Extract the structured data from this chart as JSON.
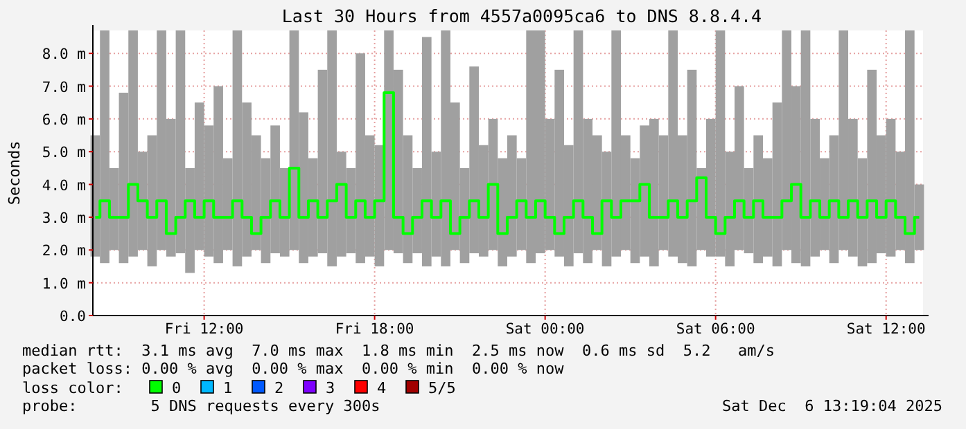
{
  "chart_data": {
    "type": "bar",
    "title": "Last 30 Hours from 4557a0095ca6 to DNS 8.8.4.4",
    "ylabel": "Seconds",
    "legend_title": "loss color:",
    "legend": "bottom",
    "grid": true,
    "x": [
      "2025-12-05T08:10",
      "2025-12-05T08:30",
      "2025-12-05T08:50",
      "2025-12-05T09:10",
      "2025-12-05T09:30",
      "2025-12-05T09:50",
      "2025-12-05T10:10",
      "2025-12-05T10:30",
      "2025-12-05T10:50",
      "2025-12-05T11:10",
      "2025-12-05T11:30",
      "2025-12-05T11:50",
      "2025-12-05T12:10",
      "2025-12-05T12:30",
      "2025-12-05T12:50",
      "2025-12-05T13:10",
      "2025-12-05T13:30",
      "2025-12-05T13:50",
      "2025-12-05T14:10",
      "2025-12-05T14:30",
      "2025-12-05T14:50",
      "2025-12-05T15:10",
      "2025-12-05T15:30",
      "2025-12-05T15:50",
      "2025-12-05T16:10",
      "2025-12-05T16:30",
      "2025-12-05T16:50",
      "2025-12-05T17:10",
      "2025-12-05T17:30",
      "2025-12-05T17:50",
      "2025-12-05T18:10",
      "2025-12-05T18:30",
      "2025-12-05T18:50",
      "2025-12-05T19:10",
      "2025-12-05T19:30",
      "2025-12-05T19:50",
      "2025-12-05T20:10",
      "2025-12-05T20:30",
      "2025-12-05T20:50",
      "2025-12-05T21:10",
      "2025-12-05T21:30",
      "2025-12-05T21:50",
      "2025-12-05T22:10",
      "2025-12-05T22:30",
      "2025-12-05T22:50",
      "2025-12-05T23:10",
      "2025-12-05T23:30",
      "2025-12-05T23:50",
      "2025-12-06T00:10",
      "2025-12-06T00:30",
      "2025-12-06T00:50",
      "2025-12-06T01:10",
      "2025-12-06T01:30",
      "2025-12-06T01:50",
      "2025-12-06T02:10",
      "2025-12-06T02:30",
      "2025-12-06T02:50",
      "2025-12-06T03:10",
      "2025-12-06T03:30",
      "2025-12-06T03:50",
      "2025-12-06T04:10",
      "2025-12-06T04:30",
      "2025-12-06T04:50",
      "2025-12-06T05:10",
      "2025-12-06T05:30",
      "2025-12-06T05:50",
      "2025-12-06T06:10",
      "2025-12-06T06:30",
      "2025-12-06T06:50",
      "2025-12-06T07:10",
      "2025-12-06T07:30",
      "2025-12-06T07:50",
      "2025-12-06T08:10",
      "2025-12-06T08:30",
      "2025-12-06T08:50",
      "2025-12-06T09:10",
      "2025-12-06T09:30",
      "2025-12-06T09:50",
      "2025-12-06T10:10",
      "2025-12-06T10:30",
      "2025-12-06T10:50",
      "2025-12-06T11:10",
      "2025-12-06T11:30",
      "2025-12-06T11:50",
      "2025-12-06T12:10",
      "2025-12-06T12:30",
      "2025-12-06T12:50",
      "2025-12-06T13:10"
    ],
    "series": [
      {
        "base": [
          1.8,
          1.6,
          2.0,
          1.6,
          1.8,
          2.0,
          1.5,
          2.0,
          1.8,
          1.9,
          1.3,
          2.0,
          1.8,
          1.6,
          2.0,
          1.5,
          1.8,
          2.0,
          1.6,
          1.9,
          1.8,
          2.0,
          1.6,
          1.8,
          1.9,
          1.5,
          1.8,
          1.9,
          1.6,
          1.8,
          1.5,
          2.0,
          1.9,
          1.6,
          1.9,
          1.5,
          1.8,
          1.5,
          2.0,
          1.6,
          1.9,
          1.8,
          2.0,
          1.5,
          1.8,
          2.0,
          1.6,
          1.9,
          2.0,
          1.8,
          1.5,
          1.9,
          1.6,
          2.0,
          1.5,
          1.8,
          2.0,
          1.6,
          1.8,
          1.5,
          2.0,
          1.8,
          1.6,
          1.5,
          2.0,
          1.8,
          1.8,
          1.5,
          2.0,
          1.9,
          1.6,
          1.8,
          1.5,
          2.0,
          1.6,
          1.5,
          1.8,
          2.0,
          1.6,
          2.0,
          1.8,
          1.5,
          1.6,
          1.9,
          1.8,
          2.0,
          1.6,
          2.0
        ],
        "color": "#a0a0a0",
        "values": [
          3.7,
          7.1,
          2.5,
          5.2,
          6.9,
          3.0,
          4.0,
          6.7,
          4.2,
          6.8,
          3.2,
          4.5,
          4.0,
          5.4,
          2.8,
          7.2,
          4.7,
          3.5,
          3.2,
          3.9,
          2.7,
          6.7,
          4.6,
          3.0,
          5.6,
          7.2,
          3.2,
          2.6,
          6.4,
          3.7,
          3.7,
          6.7,
          5.6,
          3.9,
          2.6,
          7.0,
          3.2,
          7.2,
          4.5,
          2.9,
          5.7,
          3.4,
          4.0,
          3.3,
          3.7,
          2.8,
          7.1,
          6.8,
          4.0,
          5.7,
          3.7,
          6.8,
          4.4,
          3.5,
          3.5,
          6.9,
          3.5,
          3.2,
          4.0,
          4.5,
          3.5,
          6.9,
          3.9,
          6.0,
          2.5,
          4.2,
          6.9,
          3.5,
          5.0,
          2.6,
          3.9,
          3.0,
          5.0,
          6.7,
          5.4,
          7.2,
          4.2,
          2.8,
          3.9,
          6.7,
          4.2,
          3.3,
          5.9,
          3.6,
          4.2,
          3.0,
          7.1,
          2.0
        ]
      },
      {
        "type": "step",
        "name": "0",
        "color": "#00ff00",
        "values": [
          3.0,
          3.5,
          3.0,
          3.0,
          4.0,
          3.5,
          3.0,
          3.5,
          2.5,
          3.0,
          3.5,
          3.0,
          3.5,
          3.0,
          3.0,
          3.5,
          3.0,
          2.5,
          3.0,
          3.5,
          3.0,
          4.5,
          3.0,
          3.5,
          3.0,
          3.5,
          4.0,
          3.0,
          3.5,
          3.0,
          3.5,
          6.8,
          3.0,
          2.5,
          3.0,
          3.5,
          3.0,
          3.5,
          2.5,
          3.0,
          3.5,
          3.0,
          4.0,
          2.5,
          3.0,
          3.5,
          3.0,
          3.5,
          3.0,
          2.5,
          3.0,
          3.5,
          3.0,
          2.5,
          3.5,
          3.0,
          3.5,
          3.5,
          4.0,
          3.0,
          3.0,
          3.5,
          3.0,
          3.5,
          4.2,
          3.0,
          2.5,
          3.0,
          3.5,
          3.0,
          3.5,
          3.0,
          3.0,
          3.5,
          4.0,
          3.0,
          3.5,
          3.0,
          3.5,
          3.0,
          3.5,
          3.0,
          3.5,
          3.0,
          3.5,
          3.0,
          2.5,
          3.0
        ]
      },
      {
        "type": "step",
        "name": "1",
        "color": "#00b8ff",
        "values": [
          null,
          null,
          null,
          null,
          null,
          null,
          null,
          null,
          null,
          null,
          null,
          null,
          null,
          null,
          null,
          null,
          null,
          null,
          null,
          null,
          null,
          null,
          null,
          null,
          null,
          null,
          null,
          null,
          null,
          null,
          null,
          null,
          null,
          null,
          null,
          null,
          null,
          null,
          null,
          null,
          null,
          null,
          null,
          null,
          null,
          null,
          null,
          null,
          null,
          null,
          null,
          null,
          null,
          null,
          null,
          null,
          null,
          null,
          null,
          null,
          null,
          null,
          null,
          null,
          null,
          null,
          null,
          null,
          null,
          null,
          null,
          null,
          null,
          null,
          null,
          null,
          null,
          null,
          null,
          null,
          null,
          null,
          null,
          null,
          null,
          null,
          null,
          null
        ]
      },
      {
        "type": "step",
        "name": "2",
        "color": "#0059ff",
        "values": [
          null,
          null,
          null,
          null,
          null,
          null,
          null,
          null,
          null,
          null,
          null,
          null,
          null,
          null,
          null,
          null,
          null,
          null,
          null,
          null,
          null,
          null,
          null,
          null,
          null,
          null,
          null,
          null,
          null,
          null,
          null,
          null,
          null,
          null,
          null,
          null,
          null,
          null,
          null,
          null,
          null,
          null,
          null,
          null,
          null,
          null,
          null,
          null,
          null,
          null,
          null,
          null,
          null,
          null,
          null,
          null,
          null,
          null,
          null,
          null,
          null,
          null,
          null,
          null,
          null,
          null,
          null,
          null,
          null,
          null,
          null,
          null,
          null,
          null,
          null,
          null,
          null,
          null,
          null,
          null,
          null,
          null,
          null,
          null,
          null,
          null,
          null,
          null
        ]
      },
      {
        "type": "step",
        "name": "3",
        "color": "#7e00ff",
        "values": [
          null,
          null,
          null,
          null,
          null,
          null,
          null,
          null,
          null,
          null,
          null,
          null,
          null,
          null,
          null,
          null,
          null,
          null,
          null,
          null,
          null,
          null,
          null,
          null,
          null,
          null,
          null,
          null,
          null,
          null,
          null,
          null,
          null,
          null,
          null,
          null,
          null,
          null,
          null,
          null,
          null,
          null,
          null,
          null,
          null,
          null,
          null,
          null,
          null,
          null,
          null,
          null,
          null,
          null,
          null,
          null,
          null,
          null,
          null,
          null,
          null,
          null,
          null,
          null,
          null,
          null,
          null,
          null,
          null,
          null,
          null,
          null,
          null,
          null,
          null,
          null,
          null,
          null,
          null,
          null,
          null,
          null,
          null,
          null,
          null,
          null,
          null,
          null
        ]
      },
      {
        "type": "step",
        "name": "4",
        "color": "#ff0000",
        "values": [
          null,
          null,
          null,
          null,
          null,
          null,
          null,
          null,
          null,
          null,
          null,
          null,
          null,
          null,
          null,
          null,
          null,
          null,
          null,
          null,
          null,
          null,
          null,
          null,
          null,
          null,
          null,
          null,
          null,
          null,
          null,
          null,
          null,
          null,
          null,
          null,
          null,
          null,
          null,
          null,
          null,
          null,
          null,
          null,
          null,
          null,
          null,
          null,
          null,
          null,
          null,
          null,
          null,
          null,
          null,
          null,
          null,
          null,
          null,
          null,
          null,
          null,
          null,
          null,
          null,
          null,
          null,
          null,
          null,
          null,
          null,
          null,
          null,
          null,
          null,
          null,
          null,
          null,
          null,
          null,
          null,
          null,
          null,
          null,
          null,
          null,
          null,
          null
        ]
      },
      {
        "type": "step",
        "name": "5/5",
        "color": "#a10000",
        "values": [
          null,
          null,
          null,
          null,
          null,
          null,
          null,
          null,
          null,
          null,
          null,
          null,
          null,
          null,
          null,
          null,
          null,
          null,
          null,
          null,
          null,
          null,
          null,
          null,
          null,
          null,
          null,
          null,
          null,
          null,
          null,
          null,
          null,
          null,
          null,
          null,
          null,
          null,
          null,
          null,
          null,
          null,
          null,
          null,
          null,
          null,
          null,
          null,
          null,
          null,
          null,
          null,
          null,
          null,
          null,
          null,
          null,
          null,
          null,
          null,
          null,
          null,
          null,
          null,
          null,
          null,
          null,
          null,
          null,
          null,
          null,
          null,
          null,
          null,
          null,
          null,
          null,
          null,
          null,
          null,
          null,
          null,
          null,
          null,
          null,
          null,
          null,
          null
        ]
      }
    ],
    "ylim": [
      0,
      8.7
    ],
    "yticks": [
      {
        "value": 0,
        "label": "0.0"
      },
      {
        "value": 1,
        "label": "1.0 m"
      },
      {
        "value": 2,
        "label": "2.0 m"
      },
      {
        "value": 3,
        "label": "3.0 m"
      },
      {
        "value": 4,
        "label": "4.0 m"
      },
      {
        "value": 5,
        "label": "5.0 m"
      },
      {
        "value": 6,
        "label": "6.0 m"
      },
      {
        "value": 7,
        "label": "7.0 m"
      },
      {
        "value": 8,
        "label": "8.0 m"
      }
    ],
    "xlim": [
      "2025-12-05T08:05",
      "2025-12-06T13:18"
    ],
    "xticks": [
      {
        "value": "2025-12-05T12:00",
        "label": "Fri 12:00"
      },
      {
        "value": "2025-12-05T18:00",
        "label": "Fri 18:00"
      },
      {
        "value": "2025-12-06T00:00",
        "label": "Sat 00:00"
      },
      {
        "value": "2025-12-06T06:00",
        "label": "Sat 06:00"
      },
      {
        "value": "2025-12-06T12:00",
        "label": "Sat 12:00"
      }
    ],
    "annotations": [
      "median rtt:  3.1 ms avg  7.0 ms max  1.8 ms min  2.5 ms now  0.6 ms sd  5.2   am/s",
      "packet loss: 0.00 % avg  0.00 % max  0.00 % min  0.00 % now",
      "probe:        5 DNS requests every 300s",
      "Sat Dec  6 13:19:04 2025"
    ]
  }
}
